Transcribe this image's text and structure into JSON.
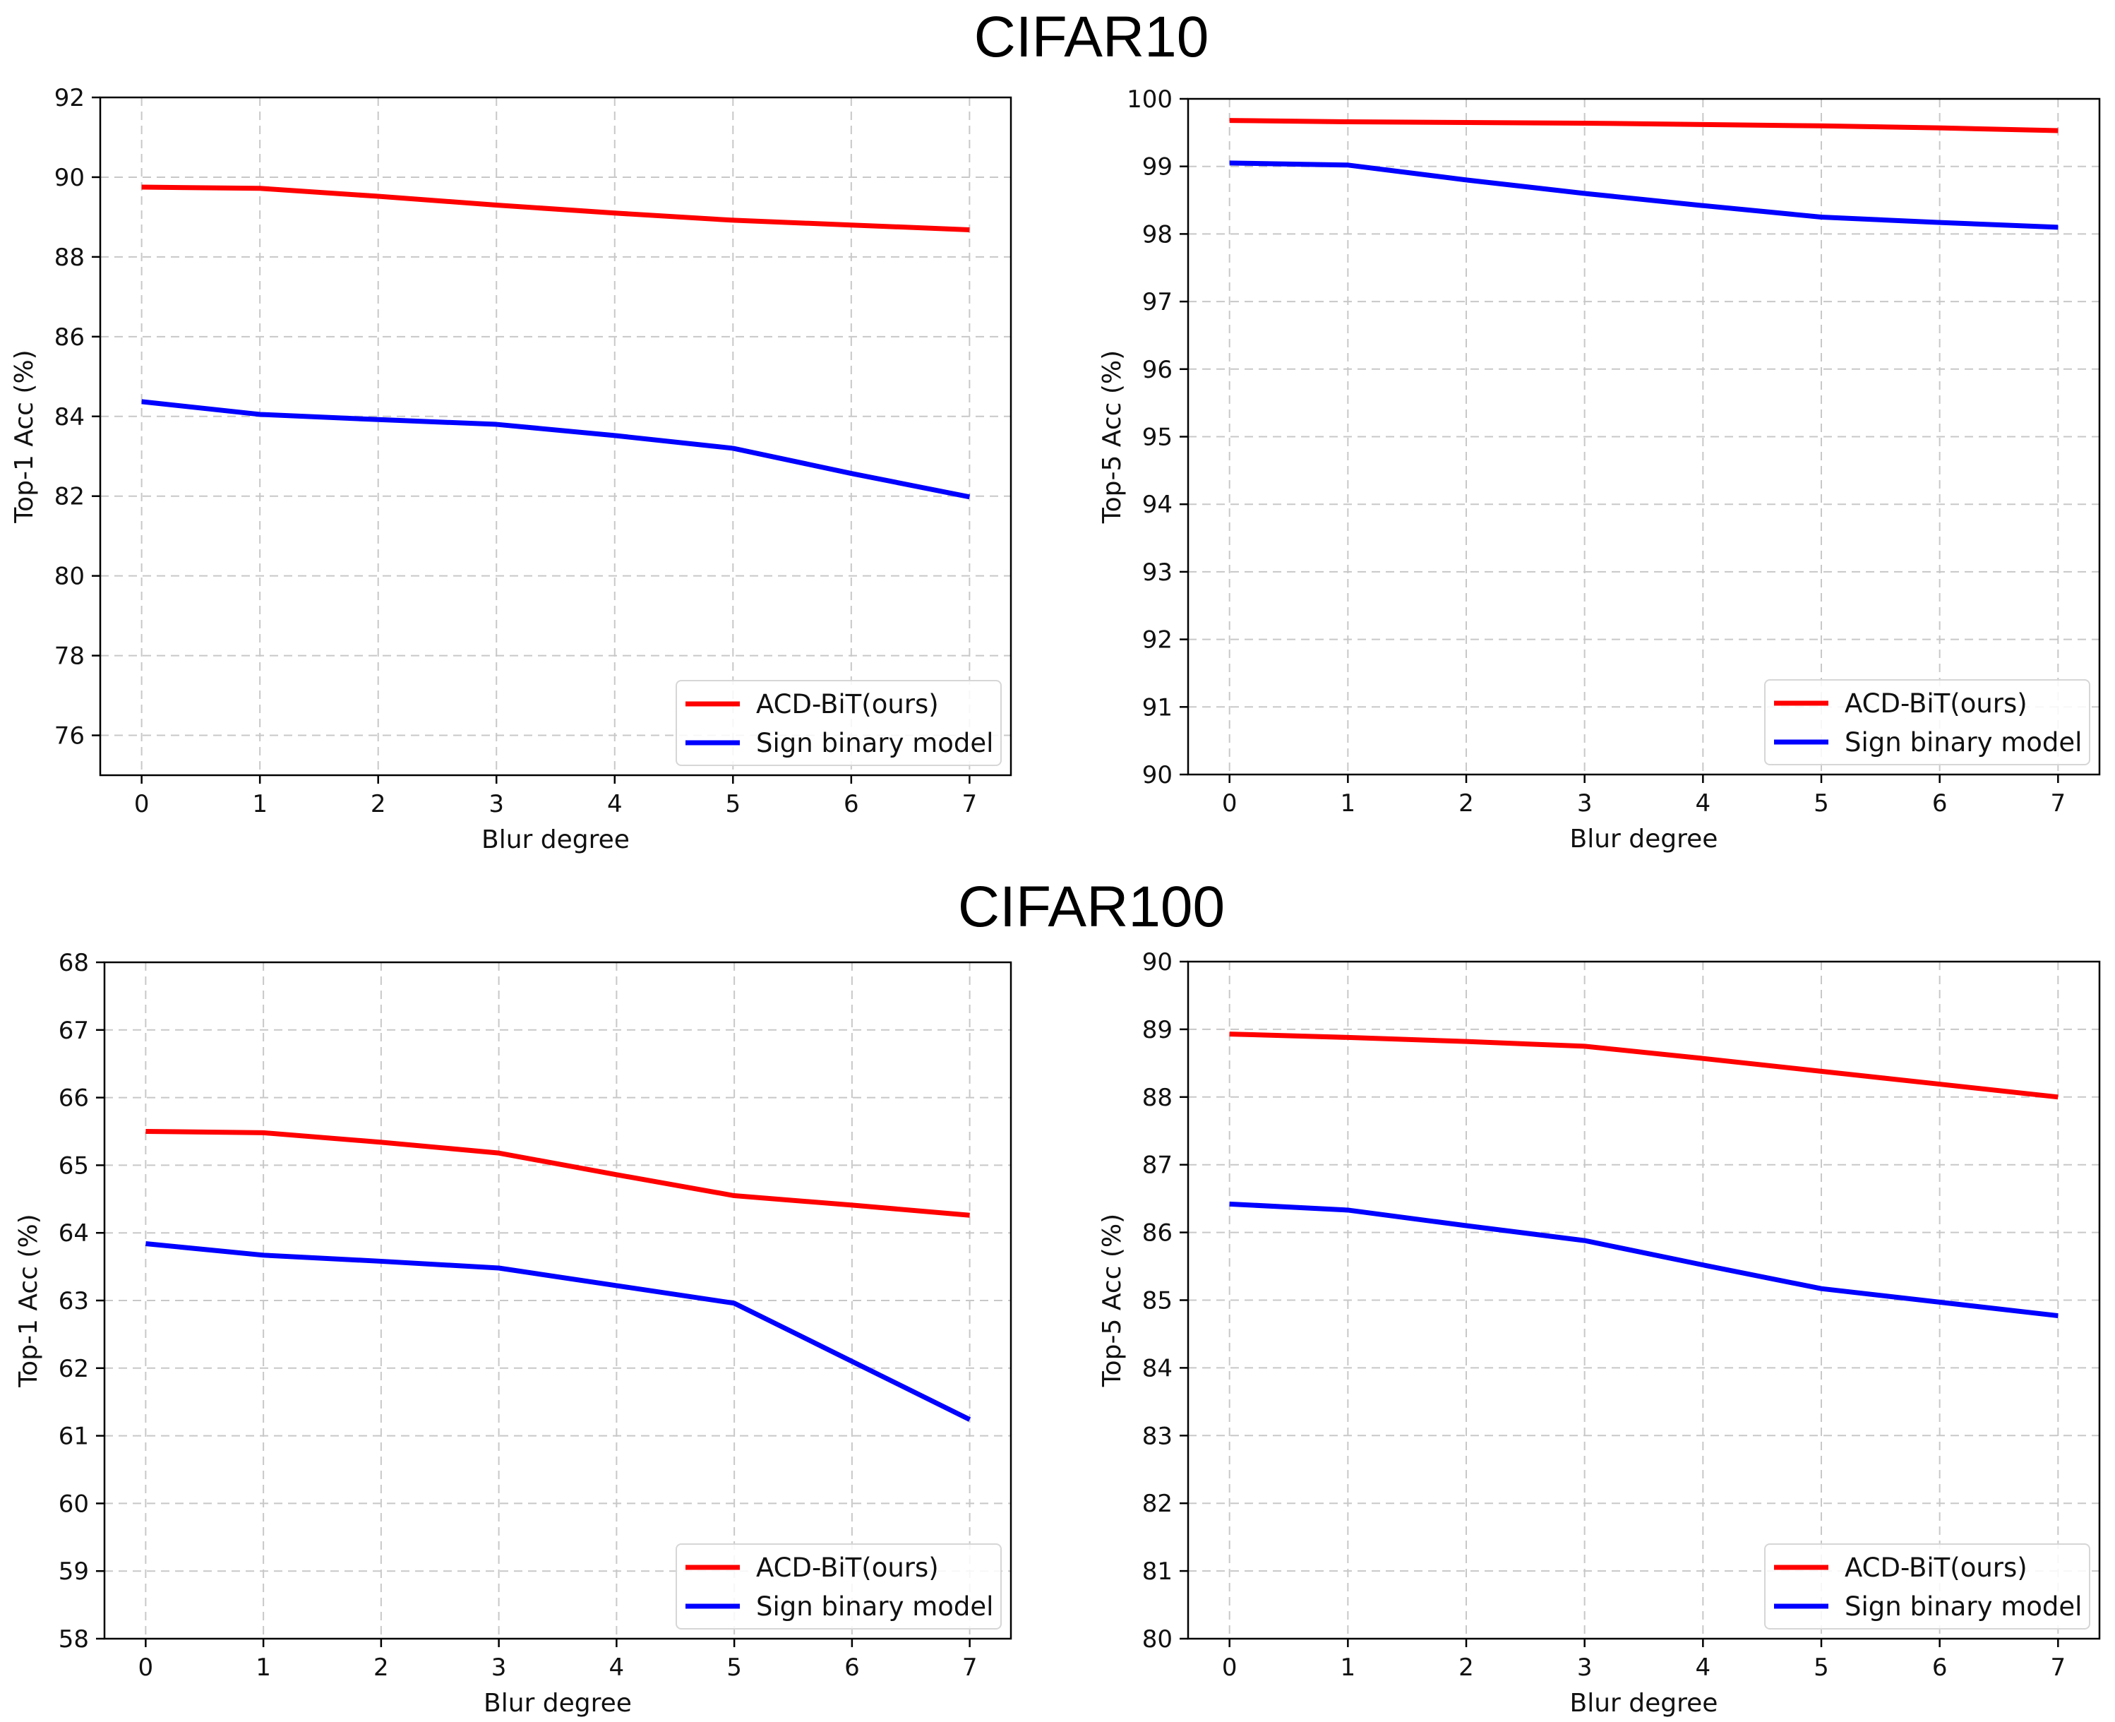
{
  "figure": {
    "section_titles": [
      "CIFAR10",
      "CIFAR100"
    ]
  },
  "chart_data": [
    {
      "type": "line",
      "section": "CIFAR10",
      "title": "",
      "xlabel": "Blur degree",
      "ylabel": "Top-1 Acc (%)",
      "x": [
        0,
        1,
        2,
        3,
        4,
        5,
        6,
        7
      ],
      "xticks": [
        0,
        1,
        2,
        3,
        4,
        5,
        6,
        7
      ],
      "xlim": [
        -0.35,
        7.35
      ],
      "ylim": [
        75,
        92
      ],
      "yticks": [
        76,
        78,
        80,
        82,
        84,
        86,
        88,
        90,
        92
      ],
      "grid": true,
      "legend_position": "bottom-right",
      "series": [
        {
          "name": "ACD-BiT(ours)",
          "color": "#ff0000",
          "values": [
            89.75,
            89.72,
            89.52,
            89.3,
            89.1,
            88.92,
            88.8,
            88.68
          ]
        },
        {
          "name": "Sign binary model",
          "color": "#0000ff",
          "values": [
            84.37,
            84.05,
            83.92,
            83.8,
            83.52,
            83.2,
            82.57,
            81.98
          ]
        }
      ]
    },
    {
      "type": "line",
      "section": "CIFAR10",
      "title": "",
      "xlabel": "Blur degree",
      "ylabel": "Top-5 Acc (%)",
      "x": [
        0,
        1,
        2,
        3,
        4,
        5,
        6,
        7
      ],
      "xticks": [
        0,
        1,
        2,
        3,
        4,
        5,
        6,
        7
      ],
      "xlim": [
        -0.35,
        7.35
      ],
      "ylim": [
        90,
        100
      ],
      "yticks": [
        90,
        91,
        92,
        93,
        94,
        95,
        96,
        97,
        98,
        99,
        100
      ],
      "grid": true,
      "legend_position": "bottom-right",
      "series": [
        {
          "name": "ACD-BiT(ours)",
          "color": "#ff0000",
          "values": [
            99.68,
            99.66,
            99.65,
            99.64,
            99.62,
            99.6,
            99.57,
            99.53
          ]
        },
        {
          "name": "Sign binary model",
          "color": "#0000ff",
          "values": [
            99.05,
            99.02,
            98.8,
            98.6,
            98.42,
            98.25,
            98.17,
            98.1
          ]
        }
      ]
    },
    {
      "type": "line",
      "section": "CIFAR100",
      "title": "",
      "xlabel": "Blur degree",
      "ylabel": "Top-1 Acc (%)",
      "x": [
        0,
        1,
        2,
        3,
        4,
        5,
        6,
        7
      ],
      "xticks": [
        0,
        1,
        2,
        3,
        4,
        5,
        6,
        7
      ],
      "xlim": [
        -0.35,
        7.35
      ],
      "ylim": [
        58,
        68
      ],
      "yticks": [
        58,
        59,
        60,
        61,
        62,
        63,
        64,
        65,
        66,
        67,
        68
      ],
      "grid": true,
      "legend_position": "bottom-right",
      "series": [
        {
          "name": "ACD-BiT(ours)",
          "color": "#ff0000",
          "values": [
            65.5,
            65.48,
            65.34,
            65.18,
            64.86,
            64.55,
            64.41,
            64.26
          ]
        },
        {
          "name": "Sign binary model",
          "color": "#0000ff",
          "values": [
            63.84,
            63.67,
            63.58,
            63.48,
            63.22,
            62.96,
            62.1,
            61.24
          ]
        }
      ]
    },
    {
      "type": "line",
      "section": "CIFAR100",
      "title": "",
      "xlabel": "Blur degree",
      "ylabel": "Top-5 Acc (%)",
      "x": [
        0,
        1,
        2,
        3,
        4,
        5,
        6,
        7
      ],
      "xticks": [
        0,
        1,
        2,
        3,
        4,
        5,
        6,
        7
      ],
      "xlim": [
        -0.35,
        7.35
      ],
      "ylim": [
        80,
        90
      ],
      "yticks": [
        80,
        81,
        82,
        83,
        84,
        85,
        86,
        87,
        88,
        89,
        90
      ],
      "grid": true,
      "legend_position": "bottom-right",
      "series": [
        {
          "name": "ACD-BiT(ours)",
          "color": "#ff0000",
          "values": [
            88.93,
            88.88,
            88.82,
            88.75,
            88.57,
            88.38,
            88.19,
            88.0
          ]
        },
        {
          "name": "Sign binary model",
          "color": "#0000ff",
          "values": [
            86.42,
            86.33,
            86.1,
            85.88,
            85.52,
            85.17,
            84.97,
            84.77
          ]
        }
      ]
    }
  ]
}
